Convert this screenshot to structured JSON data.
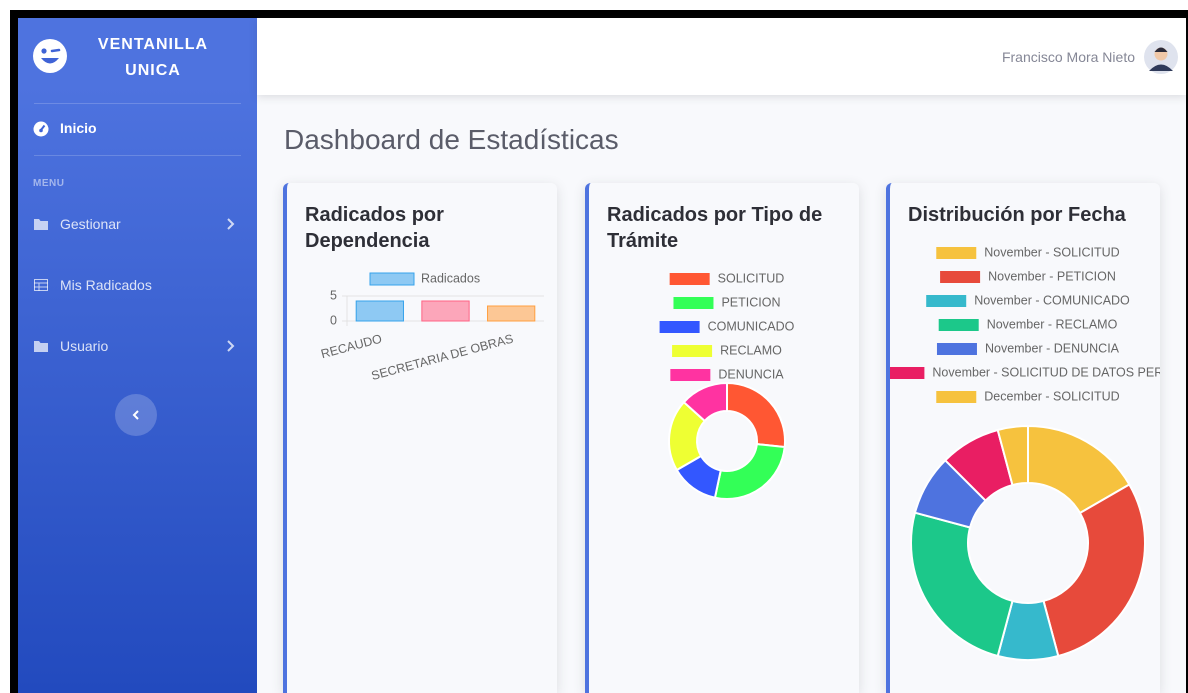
{
  "sidebar": {
    "brand": [
      "VENTANILLA",
      "UNICA"
    ],
    "home": "Inicio",
    "heading": "MENU",
    "items": [
      "Gestionar",
      "Mis Radicados",
      "Usuario"
    ]
  },
  "topbar": {
    "user": "Francisco Mora Nieto"
  },
  "page_title": "Dashboard de Estadísticas",
  "chart_data": [
    {
      "type": "bar",
      "title": "Radicados por Dependencia",
      "categories": [
        "RECAUDO",
        null,
        "SECRETARIA DE OBRAS"
      ],
      "series": [
        {
          "name": "Radicados",
          "values": [
            4,
            4,
            3
          ],
          "colors": [
            "#36a2eb",
            "#ff6384",
            "#ff9f40"
          ]
        }
      ],
      "ylim": [
        0,
        5
      ],
      "yticks": [
        0,
        5
      ],
      "grid": true
    },
    {
      "type": "doughnut",
      "title": "Radicados por Tipo de Trámite",
      "categories": [
        "SOLICITUD",
        "PETICION",
        "COMUNICADO",
        "RECLAMO",
        "DENUNCIA"
      ],
      "values": [
        4,
        4,
        2,
        3,
        2
      ],
      "colors": [
        "#ff5733",
        "#33ff57",
        "#3357ff",
        "#eeff33",
        "#ff33a1"
      ]
    },
    {
      "type": "doughnut",
      "title": "Distribución por Fecha",
      "categories": [
        "November - SOLICITUD",
        "November - PETICION",
        "November - COMUNICADO",
        "November - RECLAMO",
        "November - DENUNCIA",
        "November - SOLICITUD DE DATOS PERS",
        "December - SOLICITUD"
      ],
      "values": [
        4,
        7,
        2,
        6,
        2,
        2,
        1
      ],
      "colors": [
        "#f6c23e",
        "#e74a3b",
        "#36b9cc",
        "#1cc88a",
        "#4e73df",
        "#e91e63",
        "#f6c23e"
      ]
    }
  ]
}
